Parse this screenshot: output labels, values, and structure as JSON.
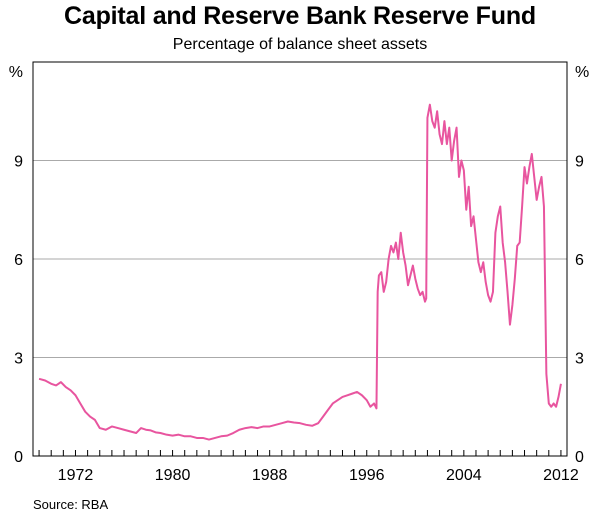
{
  "chart_data": {
    "type": "line",
    "title": "Capital and Reserve Bank Reserve Fund",
    "subtitle": "Percentage of balance sheet assets",
    "ylabel_left": "%",
    "ylabel_right": "%",
    "xlabel": "",
    "xlim": [
      1968.5,
      2012.5
    ],
    "ylim": [
      0,
      12
    ],
    "yticks": [
      0,
      3,
      6,
      9
    ],
    "ytick_labels": [
      "0",
      "3",
      "6",
      "9"
    ],
    "xtick_labels": [
      "1972",
      "1980",
      "1988",
      "1996",
      "2004",
      "2012"
    ],
    "xtick_positions": [
      1972,
      1980,
      1988,
      1996,
      2004,
      2012
    ],
    "grid": true,
    "line_color": "#e8559f",
    "source": "Source: RBA",
    "series": [
      {
        "name": "Capital and Reserve Bank Reserve Fund",
        "x": [
          1969.0,
          1969.5,
          1970.0,
          1970.4,
          1970.8,
          1971.2,
          1971.6,
          1972.0,
          1972.4,
          1972.8,
          1973.2,
          1973.6,
          1974.0,
          1974.5,
          1975.0,
          1975.5,
          1976.0,
          1976.5,
          1977.0,
          1977.4,
          1977.8,
          1978.2,
          1978.6,
          1979.0,
          1979.5,
          1980.0,
          1980.5,
          1981.0,
          1981.5,
          1982.0,
          1982.5,
          1983.0,
          1983.5,
          1984.0,
          1984.5,
          1985.0,
          1985.5,
          1986.0,
          1986.5,
          1987.0,
          1987.5,
          1988.0,
          1988.5,
          1989.0,
          1989.5,
          1990.0,
          1990.5,
          1991.0,
          1991.5,
          1992.0,
          1992.4,
          1992.8,
          1993.2,
          1993.6,
          1994.0,
          1994.4,
          1994.8,
          1995.2,
          1995.6,
          1996.0,
          1996.3,
          1996.6,
          1996.8,
          1996.9,
          1997.0,
          1997.2,
          1997.4,
          1997.6,
          1997.8,
          1998.0,
          1998.2,
          1998.4,
          1998.6,
          1998.8,
          1999.0,
          1999.2,
          1999.4,
          1999.6,
          1999.8,
          2000.0,
          2000.2,
          2000.4,
          2000.6,
          2000.8,
          2000.9,
          2001.0,
          2001.2,
          2001.4,
          2001.6,
          2001.8,
          2002.0,
          2002.2,
          2002.4,
          2002.6,
          2002.8,
          2003.0,
          2003.2,
          2003.4,
          2003.6,
          2003.8,
          2004.0,
          2004.2,
          2004.4,
          2004.6,
          2004.8,
          2005.0,
          2005.2,
          2005.4,
          2005.6,
          2005.8,
          2006.0,
          2006.2,
          2006.4,
          2006.6,
          2006.8,
          2007.0,
          2007.2,
          2007.4,
          2007.6,
          2007.8,
          2008.0,
          2008.2,
          2008.4,
          2008.6,
          2008.8,
          2009.0,
          2009.2,
          2009.4,
          2009.6,
          2009.8,
          2010.0,
          2010.2,
          2010.4,
          2010.6,
          2010.8,
          2011.0,
          2011.2,
          2011.4,
          2011.6,
          2011.8,
          2012.0
        ],
        "values": [
          2.35,
          2.3,
          2.2,
          2.15,
          2.25,
          2.1,
          2.0,
          1.85,
          1.6,
          1.35,
          1.2,
          1.1,
          0.85,
          0.8,
          0.9,
          0.85,
          0.8,
          0.75,
          0.7,
          0.85,
          0.8,
          0.78,
          0.72,
          0.7,
          0.65,
          0.62,
          0.65,
          0.6,
          0.6,
          0.55,
          0.55,
          0.5,
          0.55,
          0.6,
          0.62,
          0.7,
          0.8,
          0.85,
          0.88,
          0.85,
          0.9,
          0.9,
          0.95,
          1.0,
          1.05,
          1.02,
          1.0,
          0.95,
          0.92,
          1.0,
          1.2,
          1.4,
          1.6,
          1.7,
          1.8,
          1.85,
          1.9,
          1.95,
          1.85,
          1.7,
          1.5,
          1.6,
          1.45,
          5.0,
          5.5,
          5.6,
          5.0,
          5.3,
          6.0,
          6.4,
          6.2,
          6.5,
          6.0,
          6.8,
          6.2,
          5.8,
          5.2,
          5.5,
          5.8,
          5.4,
          5.1,
          4.9,
          5.0,
          4.7,
          4.8,
          10.3,
          10.7,
          10.2,
          10.0,
          10.5,
          9.8,
          9.5,
          10.2,
          9.5,
          10.0,
          9.0,
          9.6,
          10.0,
          8.5,
          9.0,
          8.7,
          7.5,
          8.2,
          7.0,
          7.3,
          6.6,
          5.9,
          5.6,
          5.9,
          5.3,
          4.9,
          4.7,
          5.0,
          6.8,
          7.3,
          7.6,
          6.5,
          5.9,
          5.0,
          4.0,
          4.6,
          5.4,
          6.4,
          6.5,
          7.6,
          8.8,
          8.3,
          8.8,
          9.2,
          8.5,
          7.8,
          8.2,
          8.5,
          7.6,
          2.5,
          1.6,
          1.5,
          1.6,
          1.5,
          1.8,
          2.2
        ]
      }
    ]
  }
}
